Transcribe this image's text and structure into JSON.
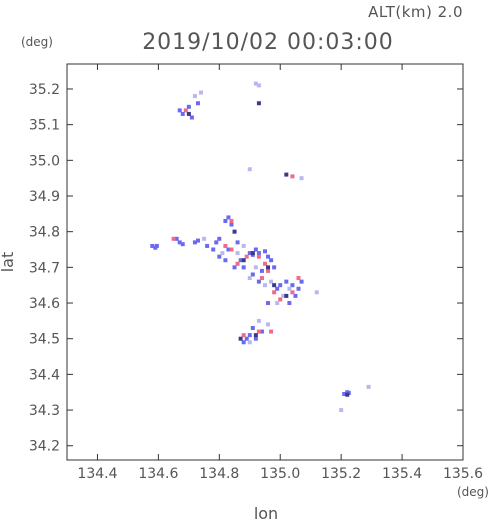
{
  "chart_data": {
    "type": "scatter",
    "title": "2019/10/02 00:03:00",
    "subtitle": "ALT(km) 2.0",
    "xlabel": "lon",
    "ylabel": "lat",
    "x_unit": "(deg)",
    "y_unit": "(deg)",
    "xlim": [
      134.3,
      135.6
    ],
    "ylim": [
      34.16,
      35.27
    ],
    "x_ticks": [
      134.4,
      134.6,
      134.8,
      135.0,
      135.2,
      135.4,
      135.6
    ],
    "x_tick_labels": [
      "134.4",
      "134.6",
      "134.8",
      "135.0",
      "135.2",
      "135.4",
      "135.6"
    ],
    "y_ticks": [
      34.2,
      34.3,
      34.4,
      34.5,
      34.6,
      34.7,
      34.8,
      34.9,
      35.0,
      35.1,
      35.2
    ],
    "y_tick_labels": [
      "34.2",
      "34.3",
      "34.4",
      "34.5",
      "34.6",
      "34.7",
      "34.8",
      "34.9",
      "35.0",
      "35.1",
      "35.2"
    ],
    "grid": false,
    "colors": {
      "blue": "#6a6af0",
      "red": "#f06a8a",
      "light": "#b8b8f0",
      "dark": "#3a3a8a"
    },
    "series": [
      {
        "color": "blue",
        "points": [
          [
            134.58,
            34.76
          ],
          [
            134.59,
            34.755
          ],
          [
            134.595,
            34.76
          ],
          [
            134.66,
            34.78
          ],
          [
            134.67,
            34.77
          ],
          [
            134.68,
            34.765
          ],
          [
            134.72,
            34.77
          ],
          [
            134.73,
            34.775
          ],
          [
            134.76,
            34.76
          ],
          [
            134.78,
            34.75
          ],
          [
            134.79,
            34.77
          ],
          [
            134.8,
            34.73
          ],
          [
            134.82,
            34.72
          ],
          [
            134.83,
            34.75
          ],
          [
            134.85,
            34.7
          ],
          [
            134.87,
            34.72
          ],
          [
            134.88,
            34.7
          ],
          [
            134.9,
            34.74
          ],
          [
            134.91,
            34.735
          ],
          [
            134.92,
            34.75
          ],
          [
            134.93,
            34.74
          ],
          [
            134.95,
            34.745
          ],
          [
            134.96,
            34.73
          ],
          [
            134.97,
            34.72
          ],
          [
            134.98,
            34.7
          ],
          [
            134.94,
            34.69
          ],
          [
            134.91,
            34.68
          ],
          [
            134.93,
            34.66
          ],
          [
            134.99,
            34.64
          ],
          [
            135.0,
            34.65
          ],
          [
            135.02,
            34.66
          ],
          [
            135.04,
            34.65
          ],
          [
            135.06,
            34.64
          ],
          [
            135.07,
            34.66
          ],
          [
            135.05,
            34.62
          ],
          [
            135.03,
            34.6
          ],
          [
            134.96,
            34.6
          ],
          [
            134.9,
            34.51
          ],
          [
            134.89,
            34.5
          ],
          [
            134.88,
            34.49
          ],
          [
            134.92,
            34.5
          ],
          [
            134.94,
            34.52
          ],
          [
            134.91,
            34.53
          ],
          [
            135.21,
            34.345
          ],
          [
            135.22,
            34.35
          ],
          [
            135.225,
            34.348
          ],
          [
            134.67,
            35.14
          ],
          [
            134.68,
            35.13
          ],
          [
            134.7,
            35.15
          ],
          [
            134.71,
            35.12
          ],
          [
            134.73,
            35.16
          ],
          [
            134.82,
            34.83
          ],
          [
            134.83,
            34.84
          ],
          [
            134.84,
            34.82
          ],
          [
            134.8,
            34.78
          ],
          [
            134.86,
            34.77
          ]
        ]
      },
      {
        "color": "red",
        "points": [
          [
            134.65,
            34.78
          ],
          [
            134.82,
            34.76
          ],
          [
            134.84,
            34.75
          ],
          [
            134.89,
            34.73
          ],
          [
            134.93,
            34.73
          ],
          [
            134.95,
            34.71
          ],
          [
            134.96,
            34.69
          ],
          [
            134.94,
            34.67
          ],
          [
            134.98,
            34.63
          ],
          [
            135.0,
            34.61
          ],
          [
            135.04,
            34.63
          ],
          [
            135.06,
            34.67
          ],
          [
            134.97,
            34.52
          ],
          [
            134.93,
            34.52
          ],
          [
            134.88,
            34.51
          ],
          [
            134.84,
            34.83
          ],
          [
            134.69,
            35.14
          ],
          [
            135.04,
            34.955
          ],
          [
            134.86,
            34.71
          ]
        ]
      },
      {
        "color": "light",
        "points": [
          [
            134.75,
            34.78
          ],
          [
            134.81,
            34.74
          ],
          [
            134.86,
            34.74
          ],
          [
            134.88,
            34.76
          ],
          [
            134.92,
            34.7
          ],
          [
            134.9,
            34.67
          ],
          [
            134.95,
            34.65
          ],
          [
            134.97,
            34.66
          ],
          [
            135.01,
            34.62
          ],
          [
            135.03,
            34.64
          ],
          [
            134.99,
            34.6
          ],
          [
            134.93,
            34.55
          ],
          [
            134.96,
            34.54
          ],
          [
            134.9,
            34.49
          ],
          [
            134.72,
            35.18
          ],
          [
            134.74,
            35.19
          ],
          [
            134.92,
            35.215
          ],
          [
            134.93,
            35.21
          ],
          [
            134.9,
            34.975
          ],
          [
            135.07,
            34.95
          ],
          [
            135.12,
            34.63
          ],
          [
            135.29,
            34.365
          ],
          [
            135.2,
            34.3
          ]
        ]
      },
      {
        "color": "dark",
        "points": [
          [
            134.85,
            34.8
          ],
          [
            134.88,
            34.72
          ],
          [
            134.91,
            34.74
          ],
          [
            134.96,
            34.7
          ],
          [
            134.98,
            34.65
          ],
          [
            135.02,
            34.62
          ],
          [
            134.92,
            34.51
          ],
          [
            134.87,
            34.5
          ],
          [
            134.7,
            35.13
          ],
          [
            134.93,
            35.16
          ],
          [
            135.02,
            34.96
          ],
          [
            135.22,
            34.343
          ]
        ]
      }
    ]
  }
}
